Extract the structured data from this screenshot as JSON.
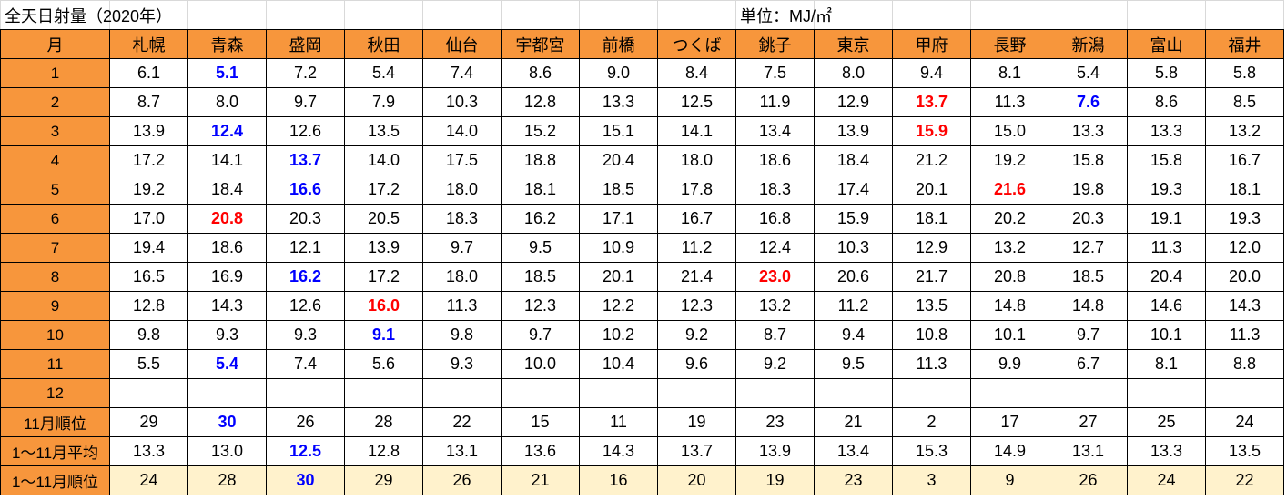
{
  "header": {
    "title": "全天日射量（2020年）",
    "unit": "単位：MJ/㎡"
  },
  "table": {
    "header_fill": "#f7963c",
    "label_fill": "#f7963c",
    "columns": [
      "月",
      "札幌",
      "青森",
      "盛岡",
      "秋田",
      "仙台",
      "宇都宮",
      "前橋",
      "つくば",
      "銚子",
      "東京",
      "甲府",
      "長野",
      "新潟",
      "富山",
      "福井"
    ],
    "rows": [
      {
        "label": "1",
        "values": [
          "6.1",
          "5.1",
          "7.2",
          "5.4",
          "7.4",
          "8.6",
          "9.0",
          "8.4",
          "7.5",
          "8.0",
          "9.4",
          "8.1",
          "5.4",
          "5.8",
          "5.8"
        ],
        "highlights": [
          {
            "col": 1,
            "color": "#0000ff"
          }
        ]
      },
      {
        "label": "2",
        "values": [
          "8.7",
          "8.0",
          "9.7",
          "7.9",
          "10.3",
          "12.8",
          "13.3",
          "12.5",
          "11.9",
          "12.9",
          "13.7",
          "11.3",
          "7.6",
          "8.6",
          "8.5"
        ],
        "highlights": [
          {
            "col": 10,
            "color": "#ff0000"
          },
          {
            "col": 12,
            "color": "#0000ff"
          }
        ]
      },
      {
        "label": "3",
        "values": [
          "13.9",
          "12.4",
          "12.6",
          "13.5",
          "14.0",
          "15.2",
          "15.1",
          "14.1",
          "13.4",
          "13.9",
          "15.9",
          "15.0",
          "13.3",
          "13.3",
          "13.2"
        ],
        "highlights": [
          {
            "col": 1,
            "color": "#0000ff"
          },
          {
            "col": 10,
            "color": "#ff0000"
          }
        ]
      },
      {
        "label": "4",
        "values": [
          "17.2",
          "14.1",
          "13.7",
          "14.0",
          "17.5",
          "18.8",
          "20.4",
          "18.0",
          "18.6",
          "18.4",
          "21.2",
          "19.2",
          "15.8",
          "15.8",
          "16.7"
        ],
        "highlights": [
          {
            "col": 2,
            "color": "#0000ff"
          }
        ]
      },
      {
        "label": "5",
        "values": [
          "19.2",
          "18.4",
          "16.6",
          "17.2",
          "18.0",
          "18.1",
          "18.5",
          "17.8",
          "18.3",
          "17.4",
          "20.1",
          "21.6",
          "19.8",
          "19.3",
          "18.1"
        ],
        "highlights": [
          {
            "col": 2,
            "color": "#0000ff"
          },
          {
            "col": 11,
            "color": "#ff0000"
          }
        ]
      },
      {
        "label": "6",
        "values": [
          "17.0",
          "20.8",
          "20.3",
          "20.5",
          "18.3",
          "16.2",
          "17.1",
          "16.7",
          "16.8",
          "15.9",
          "18.1",
          "20.2",
          "20.3",
          "19.1",
          "19.3"
        ],
        "highlights": [
          {
            "col": 1,
            "color": "#ff0000"
          }
        ]
      },
      {
        "label": "7",
        "values": [
          "19.4",
          "18.6",
          "12.1",
          "13.9",
          "9.7",
          "9.5",
          "10.9",
          "11.2",
          "12.4",
          "10.3",
          "12.9",
          "13.2",
          "12.7",
          "11.3",
          "12.0"
        ],
        "highlights": []
      },
      {
        "label": "8",
        "values": [
          "16.5",
          "16.9",
          "16.2",
          "17.2",
          "18.0",
          "18.5",
          "20.1",
          "21.4",
          "23.0",
          "20.6",
          "21.7",
          "20.8",
          "18.5",
          "20.4",
          "20.0"
        ],
        "highlights": [
          {
            "col": 2,
            "color": "#0000ff"
          },
          {
            "col": 8,
            "color": "#ff0000"
          }
        ]
      },
      {
        "label": "9",
        "values": [
          "12.8",
          "14.3",
          "12.6",
          "16.0",
          "11.3",
          "12.3",
          "12.2",
          "12.3",
          "13.2",
          "11.2",
          "13.5",
          "14.8",
          "14.8",
          "14.6",
          "14.3"
        ],
        "highlights": [
          {
            "col": 3,
            "color": "#ff0000"
          }
        ]
      },
      {
        "label": "10",
        "values": [
          "9.8",
          "9.3",
          "9.3",
          "9.1",
          "9.8",
          "9.7",
          "10.2",
          "9.2",
          "8.7",
          "9.4",
          "10.8",
          "10.1",
          "9.7",
          "10.1",
          "11.3"
        ],
        "highlights": [
          {
            "col": 3,
            "color": "#0000ff"
          }
        ]
      },
      {
        "label": "11",
        "values": [
          "5.5",
          "5.4",
          "7.4",
          "5.6",
          "9.3",
          "10.0",
          "10.4",
          "9.6",
          "9.2",
          "9.5",
          "11.3",
          "9.9",
          "6.7",
          "8.1",
          "8.8"
        ],
        "highlights": [
          {
            "col": 1,
            "color": "#0000ff"
          }
        ]
      },
      {
        "label": "12",
        "values": [],
        "highlights": []
      },
      {
        "label": "11月順位",
        "values": [
          "29",
          "30",
          "26",
          "28",
          "22",
          "15",
          "11",
          "19",
          "23",
          "21",
          "2",
          "17",
          "27",
          "25",
          "24"
        ],
        "highlights": [
          {
            "col": 1,
            "color": "#0000ff"
          }
        ]
      },
      {
        "label": "1～11月平均",
        "values": [
          "13.3",
          "13.0",
          "12.5",
          "12.8",
          "13.1",
          "13.6",
          "14.3",
          "13.7",
          "13.9",
          "13.4",
          "15.3",
          "14.9",
          "13.1",
          "13.3",
          "13.5"
        ],
        "highlights": [
          {
            "col": 2,
            "color": "#0000ff"
          }
        ]
      },
      {
        "label": "1～11月順位",
        "values": [
          "24",
          "28",
          "30",
          "29",
          "26",
          "21",
          "16",
          "20",
          "19",
          "23",
          "3",
          "9",
          "26",
          "24",
          "22"
        ],
        "highlights": [
          {
            "col": 2,
            "color": "#0000ff"
          }
        ],
        "fill": "#fff2cc"
      }
    ]
  }
}
